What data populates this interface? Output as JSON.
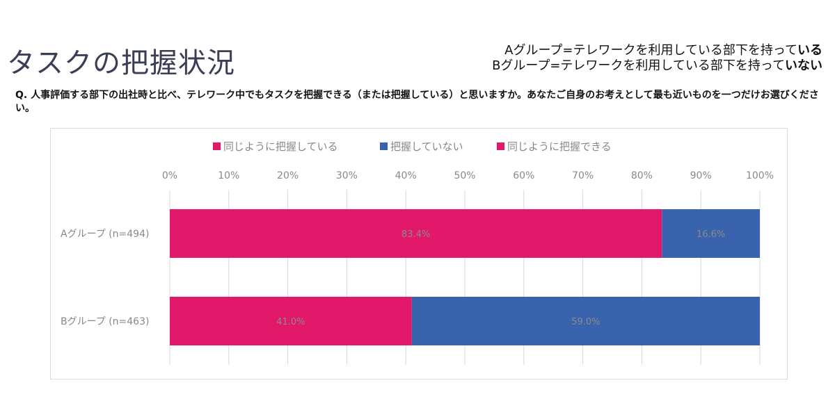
{
  "page": {
    "title": "タスクの把握状況",
    "definitions": [
      {
        "text": "Aグループ=テレワークを利用している部下を持って",
        "emphasis": "いる"
      },
      {
        "text": "Bグループ=テレワークを利用している部下を持って",
        "emphasis": "いない"
      }
    ],
    "question": "Q. 人事評価する部下の出社時と比べ、テレワーク中でもタスクを把握できる（または把握している）と思いますか。あなたご自身のお考えとして最も近いものを一つだけお選びください。"
  },
  "colors": {
    "same": "#e2186a",
    "not": "#3a63ad",
    "axis_text": "#888888",
    "data_label": "#8a8a8a",
    "grid": "#d9d9d9"
  },
  "chart_data": {
    "type": "bar",
    "orientation": "horizontal",
    "stacked": true,
    "legend": {
      "position": "top",
      "items": [
        {
          "label": "同じように把握している",
          "color": "#e2186a"
        },
        {
          "label": "把握していない",
          "color": "#3a63ad"
        },
        {
          "label": "同じように把握できる",
          "color": "#e2186a"
        }
      ]
    },
    "xlim": [
      0,
      100
    ],
    "x_ticks": [
      "0%",
      "10%",
      "20%",
      "30%",
      "40%",
      "50%",
      "60%",
      "70%",
      "80%",
      "90%",
      "100%"
    ],
    "categories": [
      "Aグループ (n=494)",
      "Bグループ (n=463)"
    ],
    "series": [
      {
        "name": "同じように把握している / 同じように把握できる",
        "values": [
          83.4,
          41.0
        ],
        "labels": [
          "83.4%",
          "41.0%"
        ],
        "color": "#e2186a"
      },
      {
        "name": "把握していない",
        "values": [
          16.6,
          59.0
        ],
        "labels": [
          "16.6%",
          "59.0%"
        ],
        "color": "#3a63ad"
      }
    ],
    "grid": true
  }
}
